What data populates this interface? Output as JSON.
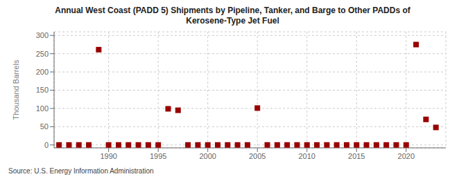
{
  "chart_data": {
    "type": "scatter",
    "title": "Annual West Coast (PADD 5) Shipments by Pipeline, Tanker, and Barge to Other PADDs of\nKerosene-Type Jet Fuel",
    "ylabel": "Thousand Barrels",
    "annotations": [
      "Source: U.S. Energy Information Administration"
    ],
    "x": [
      1985,
      1986,
      1987,
      1988,
      1989,
      1990,
      1991,
      1992,
      1993,
      1994,
      1995,
      1996,
      1997,
      1998,
      1999,
      2000,
      2001,
      2002,
      2003,
      2004,
      2005,
      2006,
      2007,
      2008,
      2009,
      2010,
      2011,
      2012,
      2013,
      2014,
      2015,
      2016,
      2017,
      2018,
      2019,
      2020,
      2021,
      2022,
      2023
    ],
    "values": [
      0,
      0,
      0,
      0,
      261,
      0,
      0,
      0,
      0,
      0,
      0,
      99,
      95,
      0,
      0,
      0,
      0,
      0,
      0,
      0,
      101,
      0,
      0,
      0,
      0,
      0,
      0,
      0,
      0,
      0,
      0,
      0,
      0,
      0,
      0,
      0,
      275,
      70,
      48
    ],
    "color": "#990000",
    "marker": "square",
    "xlim": [
      1984.5,
      2024
    ],
    "ylim": [
      -8,
      310
    ],
    "xticks": [
      1990,
      1995,
      2000,
      2005,
      2010,
      2015,
      2020
    ],
    "yticks": [
      0,
      50,
      100,
      150,
      200,
      250,
      300
    ],
    "grid": true
  }
}
